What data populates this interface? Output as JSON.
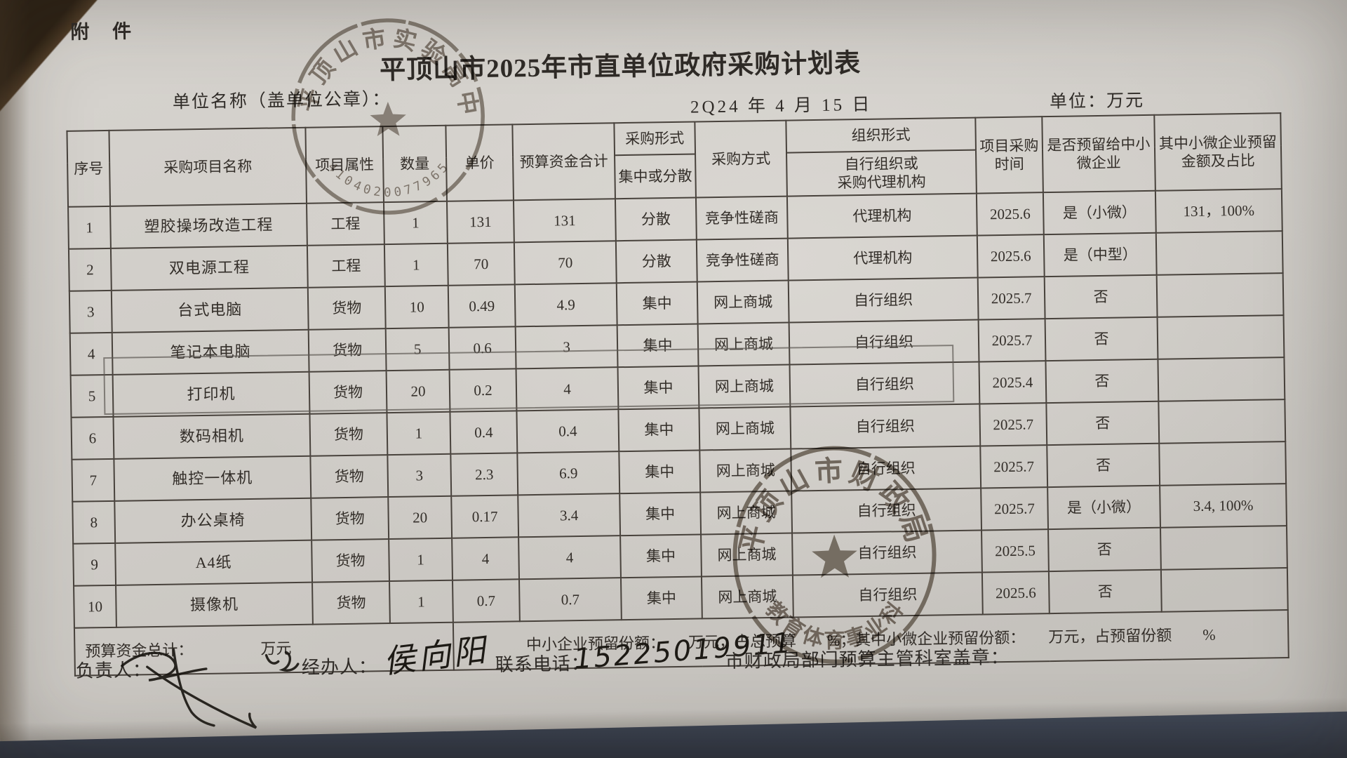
{
  "page": {
    "attachment": "附 件",
    "title": "平顶山市2025年市直单位政府采购计划表",
    "unit_name_label": "单位名称（盖单位公章）：",
    "date_text": "2Q24 年 4 月 15 日",
    "unit_text": "单位：万元"
  },
  "table": {
    "headers": {
      "no": "序号",
      "name": "采购项目名称",
      "attr": "项目属性",
      "qty": "数量",
      "price": "单价",
      "budget": "预算资金合计",
      "form_group": "采购形式",
      "form_sub": "集中或分散",
      "method": "采购方式",
      "org_group": "组织形式",
      "org_sub": "自行组织或\n采购代理机构",
      "time": "项目采购时间",
      "reserve": "是否预留给中小微企业",
      "reserve_amount": "其中小微企业预留金额及占比"
    },
    "rows": [
      {
        "no": "1",
        "name": "塑胶操场改造工程",
        "attr": "工程",
        "qty": "1",
        "price": "131",
        "budget": "131",
        "form": "分散",
        "method": "竞争性磋商",
        "org": "代理机构",
        "time": "2025.6",
        "reserve": "是（小微）",
        "reserve_amount": "131，100%"
      },
      {
        "no": "2",
        "name": "双电源工程",
        "attr": "工程",
        "qty": "1",
        "price": "70",
        "budget": "70",
        "form": "分散",
        "method": "竞争性磋商",
        "org": "代理机构",
        "time": "2025.6",
        "reserve": "是（中型）",
        "reserve_amount": ""
      },
      {
        "no": "3",
        "name": "台式电脑",
        "attr": "货物",
        "qty": "10",
        "price": "0.49",
        "budget": "4.9",
        "form": "集中",
        "method": "网上商城",
        "org": "自行组织",
        "time": "2025.7",
        "reserve": "否",
        "reserve_amount": ""
      },
      {
        "no": "4",
        "name": "笔记本电脑",
        "attr": "货物",
        "qty": "5",
        "price": "0.6",
        "budget": "3",
        "form": "集中",
        "method": "网上商城",
        "org": "自行组织",
        "time": "2025.7",
        "reserve": "否",
        "reserve_amount": ""
      },
      {
        "no": "5",
        "name": "打印机",
        "attr": "货物",
        "qty": "20",
        "price": "0.2",
        "budget": "4",
        "form": "集中",
        "method": "网上商城",
        "org": "自行组织",
        "time": "2025.4",
        "reserve": "否",
        "reserve_amount": ""
      },
      {
        "no": "6",
        "name": "数码相机",
        "attr": "货物",
        "qty": "1",
        "price": "0.4",
        "budget": "0.4",
        "form": "集中",
        "method": "网上商城",
        "org": "自行组织",
        "time": "2025.7",
        "reserve": "否",
        "reserve_amount": ""
      },
      {
        "no": "7",
        "name": "触控一体机",
        "attr": "货物",
        "qty": "3",
        "price": "2.3",
        "budget": "6.9",
        "form": "集中",
        "method": "网上商城",
        "org": "自行组织",
        "time": "2025.7",
        "reserve": "否",
        "reserve_amount": ""
      },
      {
        "no": "8",
        "name": "办公桌椅",
        "attr": "货物",
        "qty": "20",
        "price": "0.17",
        "budget": "3.4",
        "form": "集中",
        "method": "网上商城",
        "org": "自行组织",
        "time": "2025.7",
        "reserve": "是（小微）",
        "reserve_amount": "3.4, 100%"
      },
      {
        "no": "9",
        "name": "A4纸",
        "attr": "货物",
        "qty": "1",
        "price": "4",
        "budget": "4",
        "form": "集中",
        "method": "网上商城",
        "org": "自行组织",
        "time": "2025.5",
        "reserve": "否",
        "reserve_amount": ""
      },
      {
        "no": "10",
        "name": "摄像机",
        "attr": "货物",
        "qty": "1",
        "price": "0.7",
        "budget": "0.7",
        "form": "集中",
        "method": "网上商城",
        "org": "自行组织",
        "time": "2025.6",
        "reserve": "否",
        "reserve_amount": ""
      }
    ],
    "summary": {
      "total_label": "预算资金总计：",
      "total_unit": "万元",
      "reserve_text": "中小企业预留份额：　　万元，占总预算　　%；其中小微企业预留份额：　　万元，占预留份额　　%"
    }
  },
  "footer": {
    "responsible_label": "负责人：",
    "handler_label": "经办人：",
    "handler_value": "侯向阳",
    "phone_label": "联系电话：",
    "phone_value": "15225019911",
    "stamp_label": "市财政局部门预算主管科室盖章："
  },
  "stamps": {
    "top": {
      "ring_text": "平顶山市实验高中",
      "serial": "4104020077965"
    },
    "bottom": {
      "ring_text": "平顶山市财政局",
      "sub_text": "教育体育事业科"
    }
  },
  "colors": {
    "paper": "#d3d0cb",
    "table_line": "#48423c",
    "ink": "#2f2b27",
    "stamp_ink_top": "#6b6156",
    "stamp_ink_bottom": "#5d5348"
  }
}
